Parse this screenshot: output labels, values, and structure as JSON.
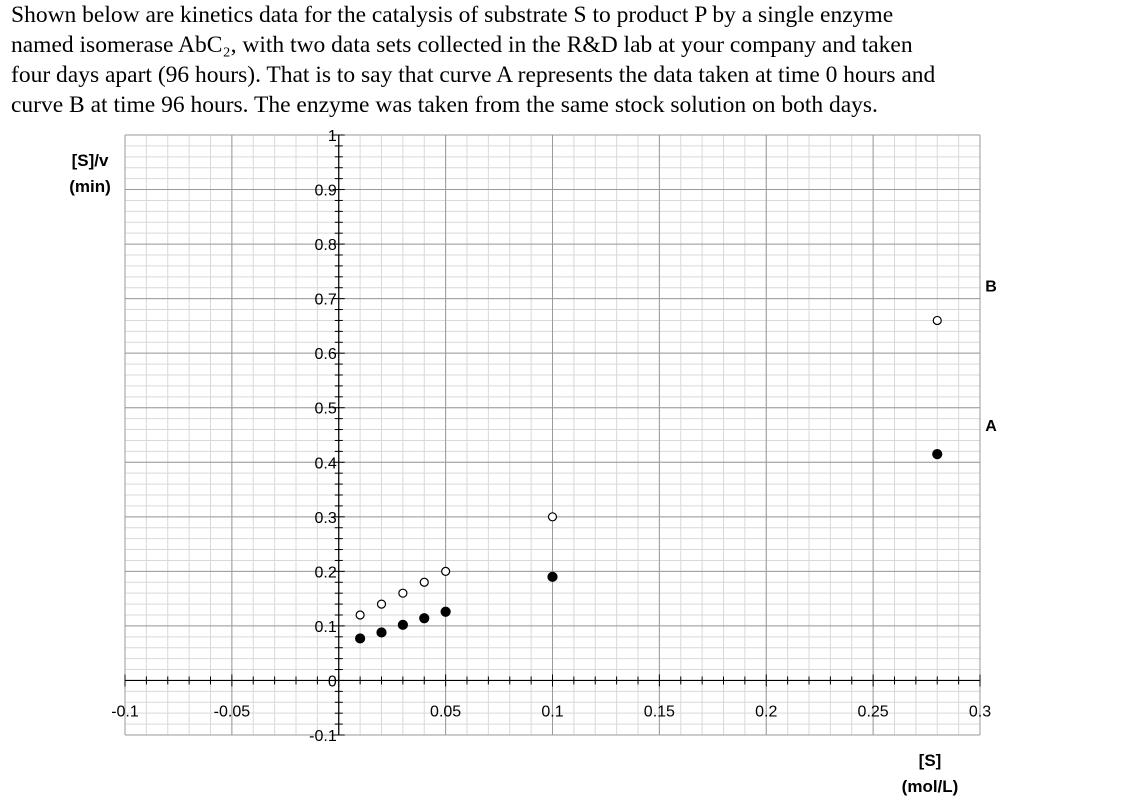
{
  "problem": {
    "lines": [
      "Shown below are kinetics data for the catalysis of substrate S to product P by a single enzyme",
      "named isomerase AbC₂, with two data sets collected in the R&D lab at your company and taken",
      "four days apart (96 hours). That is to say that curve A represents the data taken at time 0 hours and",
      "curve B at time 96 hours. The enzyme was taken from the same stock solution on both days."
    ]
  },
  "chart_data": {
    "type": "scatter",
    "title": "",
    "xlabel": [
      "[S]",
      "(mol/L)"
    ],
    "ylabel": [
      "[S]/v",
      "(min)"
    ],
    "xlim": [
      -0.1,
      0.3
    ],
    "ylim": [
      -0.1,
      1.0
    ],
    "x_ticks": [
      "-0.1",
      "-0.05",
      "0",
      "0.05",
      "0.1",
      "0.15",
      "0.2",
      "0.25",
      "0.3"
    ],
    "x_tick_values": [
      -0.1,
      -0.05,
      0,
      0.05,
      0.1,
      0.15,
      0.2,
      0.25,
      0.3
    ],
    "y_ticks": [
      "-0.1",
      "0",
      "0.1",
      "0.2",
      "0.3",
      "0.4",
      "0.5",
      "0.6",
      "0.7",
      "0.8",
      "0.9",
      "1"
    ],
    "y_tick_values": [
      -0.1,
      0,
      0.1,
      0.2,
      0.3,
      0.4,
      0.5,
      0.6,
      0.7,
      0.8,
      0.9,
      1.0
    ],
    "grid": true,
    "series": [
      {
        "name": "A",
        "marker": "filled-circle",
        "color": "#000000",
        "points": [
          [
            0.01,
            0.077
          ],
          [
            0.02,
            0.088
          ],
          [
            0.03,
            0.102
          ],
          [
            0.04,
            0.114
          ],
          [
            0.05,
            0.126
          ],
          [
            0.1,
            0.19
          ],
          [
            0.28,
            0.415
          ]
        ]
      },
      {
        "name": "B",
        "marker": "open-circle",
        "color": "#000000",
        "points": [
          [
            0.01,
            0.12
          ],
          [
            0.02,
            0.14
          ],
          [
            0.03,
            0.16
          ],
          [
            0.04,
            0.18
          ],
          [
            0.05,
            0.2
          ],
          [
            0.1,
            0.3
          ],
          [
            0.28,
            0.66
          ]
        ]
      }
    ]
  }
}
